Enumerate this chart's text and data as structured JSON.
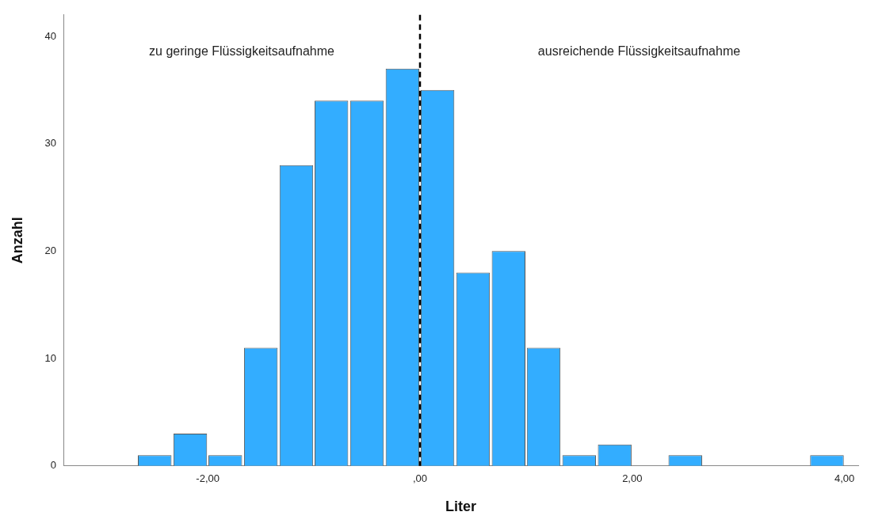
{
  "chart_data": {
    "type": "histogram",
    "xlabel": "Liter",
    "ylabel": "Anzahl",
    "bins": [
      -2.67,
      -2.33,
      -2,
      -1.67,
      -1.33,
      -1,
      -0.67,
      -0.33,
      0,
      0.33,
      0.67,
      1,
      1.33,
      1.67,
      2,
      2.33,
      2.67,
      3.67,
      4
    ],
    "values": [
      1,
      3,
      1,
      11,
      28,
      34,
      34,
      37,
      35,
      18,
      20,
      11,
      1,
      2,
      0,
      1,
      0,
      1
    ],
    "color": "#33adff",
    "xlim": [
      -3.36,
      4.13
    ],
    "xticks": [
      {
        "value": -2,
        "label": "-2,00"
      },
      {
        "value": 0,
        "label": ",00"
      },
      {
        "value": 2,
        "label": "2,00"
      },
      {
        "value": 4,
        "label": "4,00"
      }
    ],
    "ylim": [
      0,
      42
    ],
    "yticks": [
      0,
      10,
      20,
      30,
      40
    ],
    "grid": false,
    "legend": false,
    "ref_lines": [
      {
        "axis": "x",
        "value": 0,
        "color": "#000000",
        "line_style": "dashed"
      }
    ],
    "annotations": [
      "zu geringe Flüssigkeitsaufnahme",
      "ausreichende Flüssigkeitsaufnahme"
    ]
  }
}
